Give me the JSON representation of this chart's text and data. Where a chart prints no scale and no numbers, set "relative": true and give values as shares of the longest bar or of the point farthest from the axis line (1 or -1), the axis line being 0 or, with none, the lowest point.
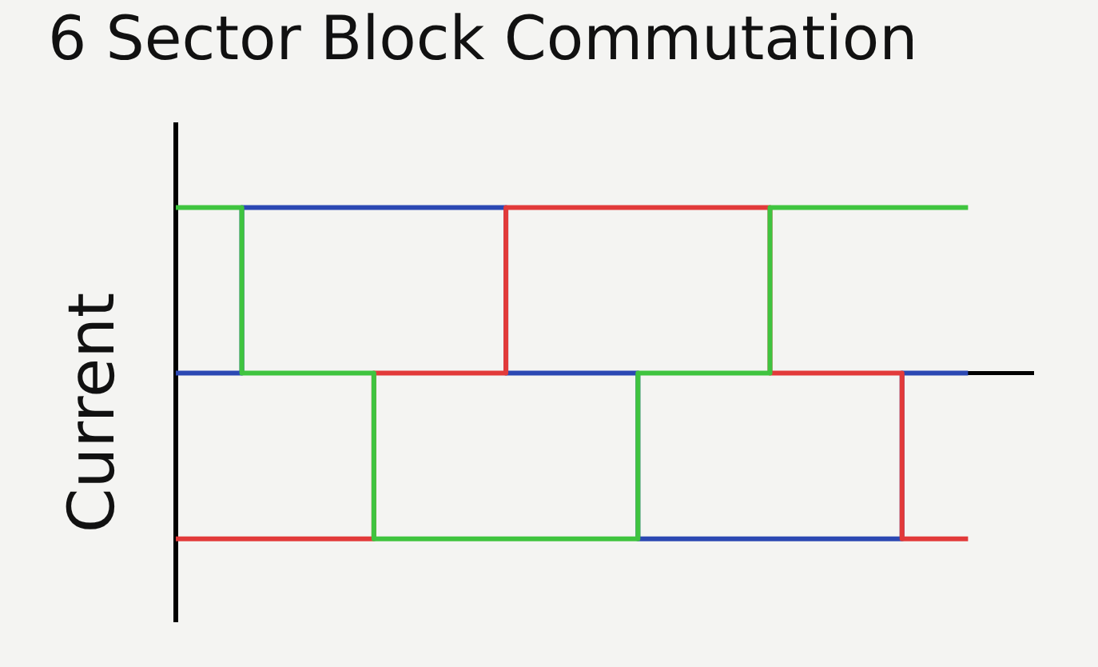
{
  "chart_data": {
    "type": "step",
    "title": "6 Sector Block Commutation",
    "ylabel": "Current",
    "relative": true,
    "legend": false,
    "grid": false,
    "categories": [
      null,
      null,
      null,
      null,
      null,
      null,
      null,
      null,
      null,
      null,
      null,
      null,
      null,
      null,
      null,
      null,
      null,
      null,
      null,
      null,
      null,
      null,
      null,
      null,
      null,
      null,
      null
    ],
    "series": [
      {
        "color": "#3fc43f",
        "values": [
          1,
          1,
          1,
          0,
          0,
          0,
          0,
          -1,
          -1,
          -1,
          -1,
          -1,
          -1,
          -1,
          -1,
          0,
          0,
          0,
          0,
          1,
          1,
          1,
          1,
          1,
          1,
          null,
          null
        ]
      },
      {
        "color": "#e23a3a",
        "values": [
          -1,
          -1,
          -1,
          -1,
          -1,
          -1,
          -1,
          0,
          0,
          0,
          0,
          1,
          1,
          1,
          1,
          1,
          1,
          1,
          1,
          0,
          0,
          0,
          0,
          -1,
          -1,
          null,
          null
        ]
      },
      {
        "color": "#2b48b3",
        "values": [
          0,
          0,
          0,
          1,
          1,
          1,
          1,
          1,
          1,
          1,
          1,
          0,
          0,
          0,
          0,
          -1,
          -1,
          -1,
          -1,
          -1,
          -1,
          -1,
          -1,
          0,
          0,
          null,
          null
        ]
      }
    ]
  }
}
